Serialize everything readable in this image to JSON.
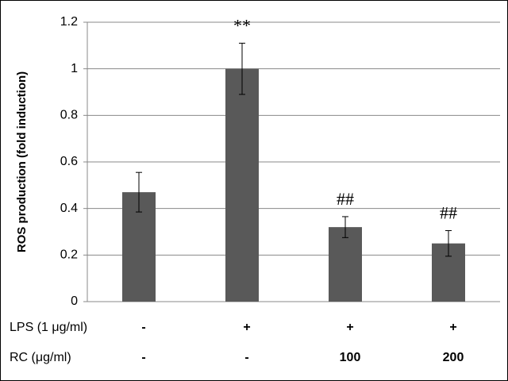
{
  "chart_data": {
    "type": "bar",
    "y_label": "ROS production (fold induction)",
    "values": [
      0.47,
      1.0,
      0.32,
      0.25
    ],
    "errors": [
      0.085,
      0.11,
      0.045,
      0.055
    ],
    "color": "#595959",
    "annotations": [
      {
        "index": 1,
        "text": "**"
      },
      {
        "index": 2,
        "text": "##"
      },
      {
        "index": 3,
        "text": "##"
      }
    ],
    "label_rows": [
      {
        "label": "LPS (1 μg/ml)",
        "values": [
          "-",
          "+",
          "+",
          "+"
        ]
      },
      {
        "label": "RC (μg/ml)",
        "values": [
          "-",
          "-",
          "100",
          "200"
        ]
      }
    ],
    "ylim": [
      0,
      1.2
    ],
    "yticks": [
      0,
      0.2,
      0.4,
      0.6,
      0.8,
      1,
      1.2
    ],
    "grid": true
  }
}
